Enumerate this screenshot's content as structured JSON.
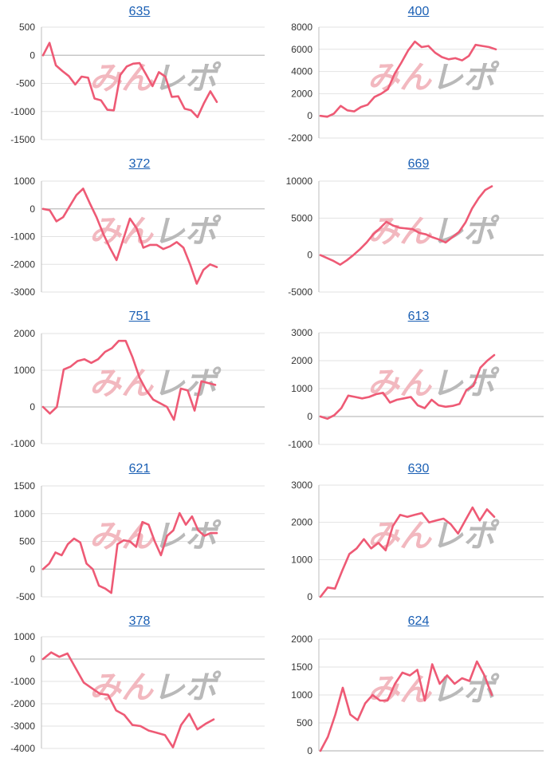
{
  "line_color": "#ee5a75",
  "grid_color": "#e2e2e2",
  "axis_color": "#bdbdbd",
  "title_color": "#1a5fb4",
  "watermark": {
    "text": "みんレポ",
    "colors": [
      "#f2b8bf",
      "#b9b9b9"
    ]
  },
  "chart_data": [
    {
      "type": "line",
      "title": "635",
      "ylim": [
        -1500,
        500
      ],
      "yticks": [
        500,
        0,
        -500,
        -1000,
        -1500
      ],
      "values": [
        0,
        220,
        -180,
        -280,
        -370,
        -520,
        -380,
        -400,
        -770,
        -800,
        -970,
        -980,
        -350,
        -200,
        -150,
        -140,
        -340,
        -550,
        -300,
        -380,
        -740,
        -730,
        -950,
        -980,
        -1100,
        -850,
        -640,
        -830
      ]
    },
    {
      "type": "line",
      "title": "400",
      "ylim": [
        -2000,
        8000
      ],
      "yticks": [
        8000,
        6000,
        4000,
        2000,
        0,
        -2000
      ],
      "values": [
        0,
        -80,
        200,
        900,
        500,
        400,
        800,
        1000,
        1700,
        2000,
        2400,
        3800,
        4800,
        5900,
        6700,
        6200,
        6300,
        5700,
        5300,
        5100,
        5200,
        5000,
        5400,
        6400,
        6300,
        6200,
        6000
      ]
    },
    {
      "type": "line",
      "title": "372",
      "ylim": [
        -3000,
        1000
      ],
      "yticks": [
        1000,
        0,
        -1000,
        -2000,
        -3000
      ],
      "values": [
        0,
        -50,
        -450,
        -300,
        100,
        500,
        730,
        200,
        -300,
        -900,
        -1400,
        -1850,
        -1100,
        -350,
        -700,
        -1400,
        -1300,
        -1300,
        -1450,
        -1350,
        -1200,
        -1400,
        -2000,
        -2700,
        -2200,
        -2000,
        -2100
      ]
    },
    {
      "type": "line",
      "title": "669",
      "ylim": [
        -5000,
        10000
      ],
      "yticks": [
        10000,
        5000,
        0,
        -5000
      ],
      "values": [
        0,
        -400,
        -800,
        -1300,
        -700,
        0,
        800,
        1700,
        2800,
        3600,
        4500,
        4000,
        3700,
        3600,
        3500,
        3000,
        2800,
        2400,
        2100,
        1700,
        2400,
        3100,
        4400,
        6300,
        7700,
        8800,
        9300
      ]
    },
    {
      "type": "line",
      "title": "751",
      "ylim": [
        -1000,
        2000
      ],
      "yticks": [
        2000,
        1000,
        0,
        -1000
      ],
      "values": [
        0,
        -180,
        0,
        1020,
        1100,
        1250,
        1300,
        1200,
        1300,
        1500,
        1600,
        1800,
        1800,
        1350,
        800,
        450,
        200,
        100,
        0,
        -350,
        500,
        450,
        -100,
        700,
        650,
        600
      ]
    },
    {
      "type": "line",
      "title": "613",
      "ylim": [
        -1000,
        3000
      ],
      "yticks": [
        3000,
        2000,
        1000,
        0,
        -1000
      ],
      "values": [
        0,
        -80,
        50,
        300,
        750,
        700,
        650,
        700,
        800,
        850,
        500,
        600,
        650,
        700,
        400,
        300,
        600,
        400,
        350,
        380,
        450,
        950,
        1100,
        1750,
        2000,
        2200
      ]
    },
    {
      "type": "line",
      "title": "621",
      "ylim": [
        -500,
        1500
      ],
      "yticks": [
        1500,
        1000,
        500,
        0,
        -500
      ],
      "values": [
        0,
        100,
        300,
        250,
        450,
        550,
        480,
        100,
        0,
        -300,
        -350,
        -430,
        450,
        520,
        500,
        400,
        850,
        800,
        500,
        250,
        600,
        700,
        1010,
        800,
        950,
        700,
        600,
        650,
        650
      ]
    },
    {
      "type": "line",
      "title": "630",
      "ylim": [
        0,
        3000
      ],
      "yticks": [
        3000,
        2000,
        1000,
        0
      ],
      "values": [
        0,
        250,
        220,
        700,
        1150,
        1300,
        1550,
        1300,
        1450,
        1250,
        1900,
        2200,
        2150,
        2200,
        2250,
        2000,
        2050,
        2100,
        1950,
        1700,
        2050,
        2400,
        2050,
        2350,
        2150
      ]
    },
    {
      "type": "line",
      "title": "378",
      "ylim": [
        -4000,
        1000
      ],
      "yticks": [
        1000,
        0,
        -1000,
        -2000,
        -3000,
        -4000
      ],
      "values": [
        0,
        300,
        100,
        250,
        -400,
        -1050,
        -1300,
        -1550,
        -1600,
        -2300,
        -2500,
        -2950,
        -3000,
        -3200,
        -3300,
        -3400,
        -3950,
        -2950,
        -2450,
        -3150,
        -2900,
        -2700
      ]
    },
    {
      "type": "line",
      "title": "624",
      "ylim": [
        0,
        2000
      ],
      "yticks": [
        2000,
        1500,
        1000,
        500,
        0
      ],
      "values": [
        0,
        250,
        650,
        1130,
        650,
        550,
        850,
        1000,
        900,
        900,
        1200,
        1400,
        1350,
        1450,
        900,
        1550,
        1200,
        1350,
        1200,
        1300,
        1250,
        1600,
        1350,
        1000
      ]
    }
  ]
}
